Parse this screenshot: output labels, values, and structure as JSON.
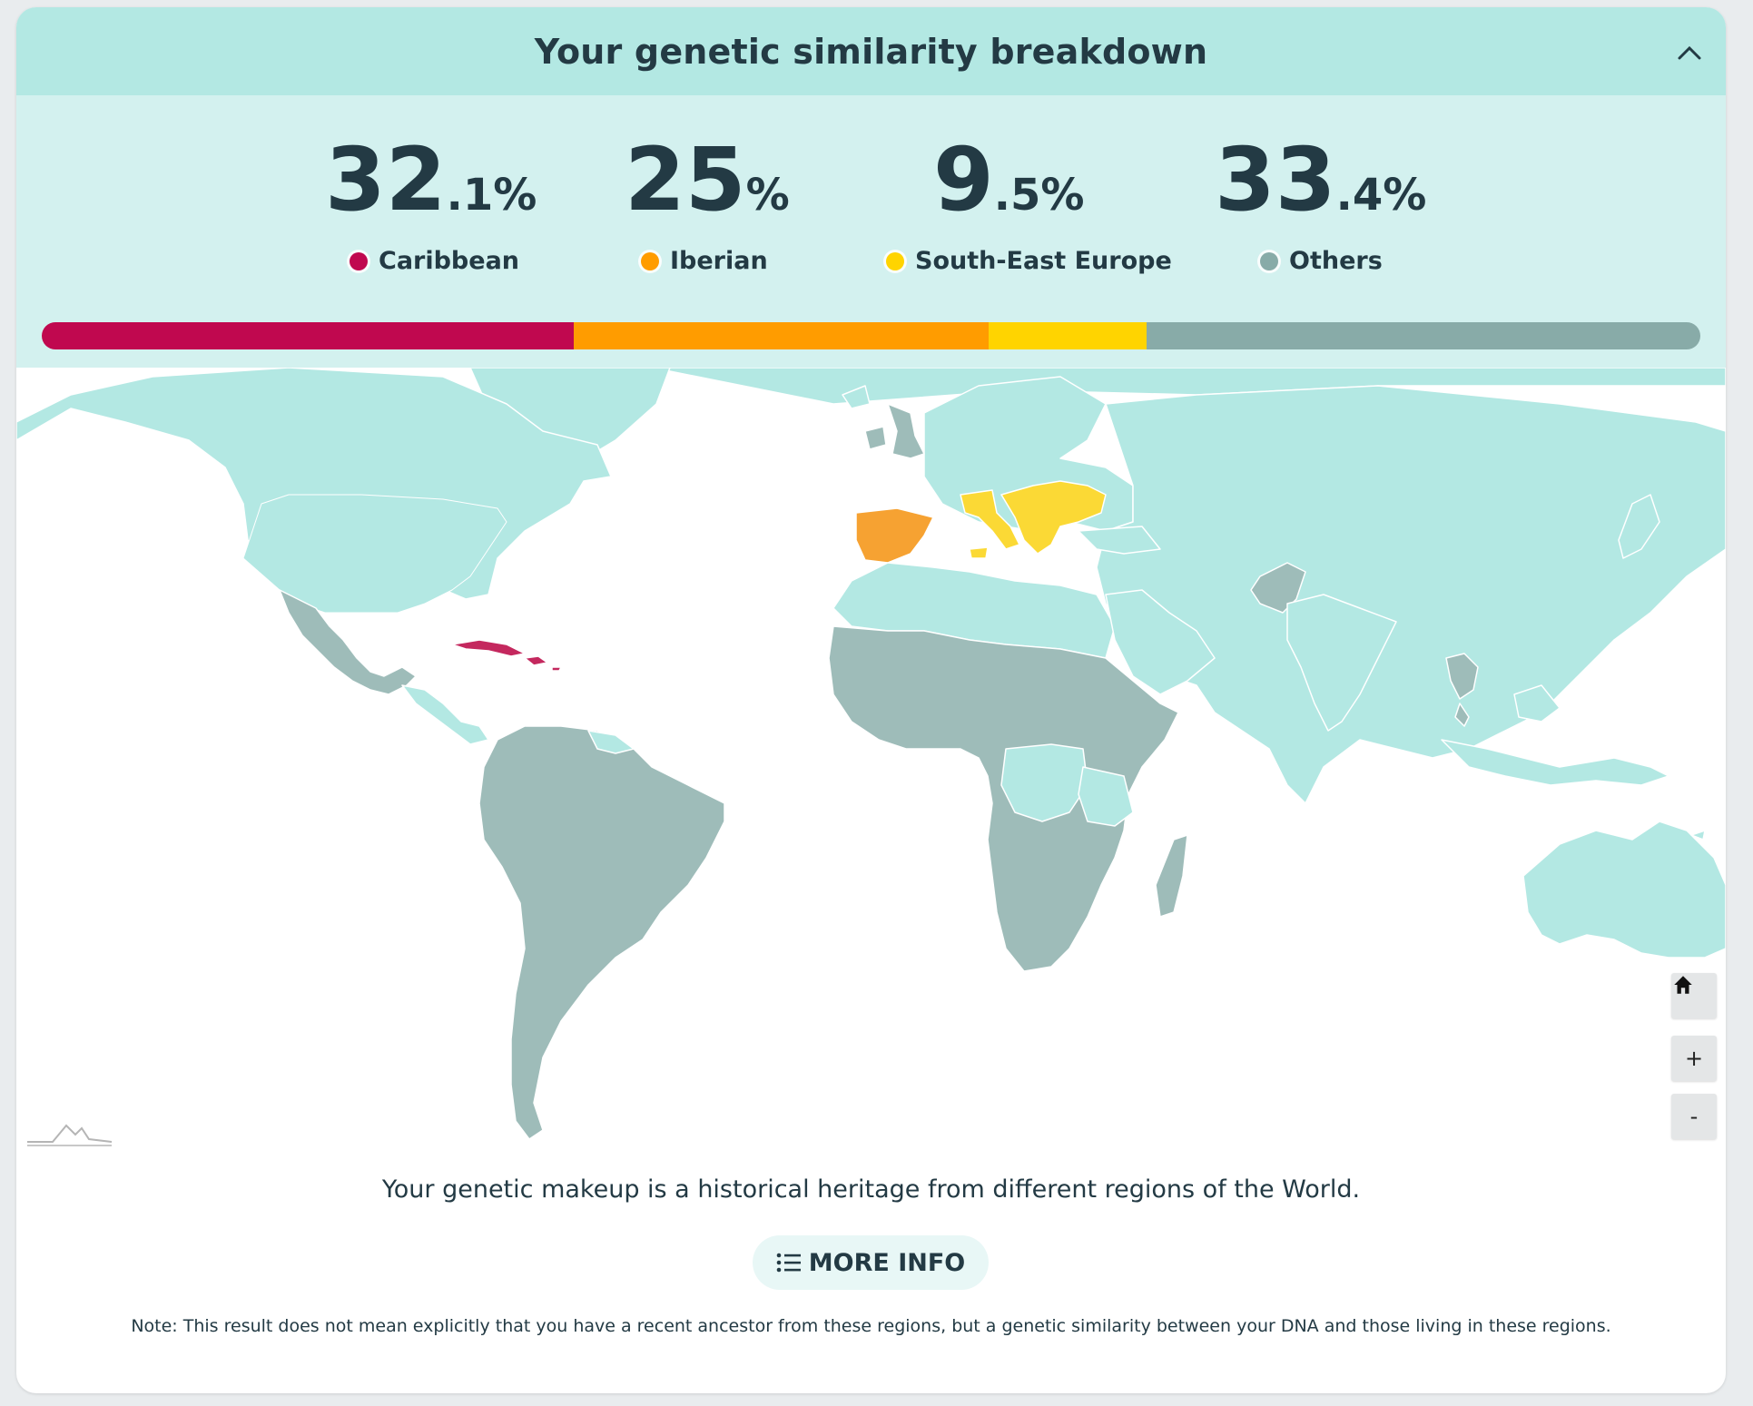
{
  "header": {
    "title": "Your genetic similarity breakdown",
    "collapse_icon": "chevron-up-icon"
  },
  "breakdown": [
    {
      "int": "32",
      "dec": ".1%",
      "label": "Caribbean",
      "value": 32.1,
      "color": "#c0084f"
    },
    {
      "int": "25",
      "dec": "%",
      "label": "Iberian",
      "value": 25,
      "color": "#ff9c00"
    },
    {
      "int": "9",
      "dec": ".5%",
      "label": "South-East Europe",
      "value": 9.5,
      "color": "#ffd400"
    },
    {
      "int": "33",
      "dec": ".4%",
      "label": "Others",
      "value": 33.4,
      "color": "#88aba8"
    }
  ],
  "map": {
    "colors": {
      "base": "#b3e8e3",
      "others": "#9ebcb9",
      "caribbean": "#c4285e",
      "iberian": "#f6a232",
      "south_east_europe": "#fbd935",
      "ocean": "#ffffff"
    },
    "controls": {
      "home_icon": "home-icon",
      "zoom_in": "+",
      "zoom_out": "-"
    },
    "logo_icon": "mountain-logo-icon"
  },
  "footer": {
    "text": "Your genetic makeup is a historical heritage from different regions of the World.",
    "more_info_label": "MORE INFO",
    "more_info_icon": "list-icon",
    "note": "Note: This result does not mean explicitly that you have a recent ancestor from these regions, but a genetic similarity between your DNA and those living in these regions."
  }
}
